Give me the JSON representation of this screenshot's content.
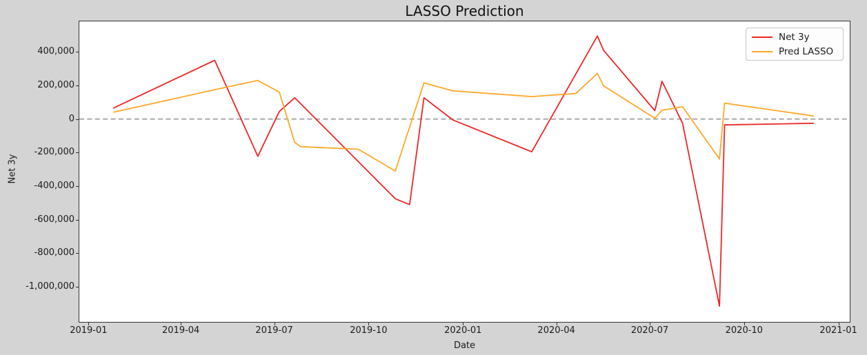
{
  "chart_data": {
    "type": "line",
    "title": "LASSO Prediction",
    "xlabel": "Date",
    "ylabel": "Net 3y",
    "background_color": "#d4d4d4",
    "plot_background_color": "#ffffff",
    "grid": false,
    "zero_line": {
      "value": 0,
      "style": "dashed",
      "color": "#999999"
    },
    "x_domain": [
      "2018-12-23",
      "2021-01-12"
    ],
    "y_domain": [
      -1209000,
      582000
    ],
    "x_ticks": [
      {
        "label": "2019-01",
        "date": "2019-01-01"
      },
      {
        "label": "2019-04",
        "date": "2019-04-01"
      },
      {
        "label": "2019-07",
        "date": "2019-07-01"
      },
      {
        "label": "2019-10",
        "date": "2019-10-01"
      },
      {
        "label": "2020-01",
        "date": "2020-01-01"
      },
      {
        "label": "2020-04",
        "date": "2020-04-01"
      },
      {
        "label": "2020-07",
        "date": "2020-07-01"
      },
      {
        "label": "2020-10",
        "date": "2020-10-01"
      },
      {
        "label": "2021-01",
        "date": "2021-01-01"
      }
    ],
    "y_ticks": [
      {
        "label": "400,000",
        "value": 400000
      },
      {
        "label": "200,000",
        "value": 200000
      },
      {
        "label": "0",
        "value": 0
      },
      {
        "label": "-200,000",
        "value": -200000
      },
      {
        "label": "-400,000",
        "value": -400000
      },
      {
        "label": "-600,000",
        "value": -600000
      },
      {
        "label": "-800,000",
        "value": -800000
      },
      {
        "label": "-1,000,000",
        "value": -1000000
      }
    ],
    "legend": {
      "position": "upper right",
      "items": [
        {
          "label": "Net 3y",
          "color": "#ee2526"
        },
        {
          "label": "Pred LASSO",
          "color": "#ffa726"
        }
      ]
    },
    "series": [
      {
        "name": "Net 3y",
        "color": "#ee2526",
        "line_width": 1.8,
        "points": [
          {
            "date": "2019-01-25",
            "value": 65000
          },
          {
            "date": "2019-05-04",
            "value": 350000
          },
          {
            "date": "2019-06-15",
            "value": -222000
          },
          {
            "date": "2019-07-06",
            "value": 45000
          },
          {
            "date": "2019-07-21",
            "value": 127000
          },
          {
            "date": "2019-10-27",
            "value": -475000
          },
          {
            "date": "2019-11-10",
            "value": -510000
          },
          {
            "date": "2019-11-24",
            "value": 127000
          },
          {
            "date": "2019-12-22",
            "value": -5000
          },
          {
            "date": "2020-03-08",
            "value": -195000
          },
          {
            "date": "2020-05-11",
            "value": 495000
          },
          {
            "date": "2020-05-17",
            "value": 410000
          },
          {
            "date": "2020-07-06",
            "value": 50000
          },
          {
            "date": "2020-07-13",
            "value": 225000
          },
          {
            "date": "2020-08-02",
            "value": -25000
          },
          {
            "date": "2020-09-07",
            "value": -1115000
          },
          {
            "date": "2020-09-12",
            "value": -35000
          },
          {
            "date": "2020-12-08",
            "value": -25000
          }
        ]
      },
      {
        "name": "Pred LASSO",
        "color": "#ffa726",
        "line_width": 1.8,
        "points": [
          {
            "date": "2019-01-25",
            "value": 40000
          },
          {
            "date": "2019-05-04",
            "value": 175000
          },
          {
            "date": "2019-06-15",
            "value": 230000
          },
          {
            "date": "2019-07-06",
            "value": 160000
          },
          {
            "date": "2019-07-21",
            "value": -140000
          },
          {
            "date": "2019-07-27",
            "value": -165000
          },
          {
            "date": "2019-09-21",
            "value": -180000
          },
          {
            "date": "2019-10-27",
            "value": -310000
          },
          {
            "date": "2019-11-24",
            "value": 215000
          },
          {
            "date": "2019-12-22",
            "value": 168000
          },
          {
            "date": "2020-03-08",
            "value": 134000
          },
          {
            "date": "2020-04-20",
            "value": 152000
          },
          {
            "date": "2020-05-11",
            "value": 272000
          },
          {
            "date": "2020-05-17",
            "value": 198000
          },
          {
            "date": "2020-07-06",
            "value": 5000
          },
          {
            "date": "2020-07-13",
            "value": 52000
          },
          {
            "date": "2020-08-02",
            "value": 73000
          },
          {
            "date": "2020-09-07",
            "value": -238000
          },
          {
            "date": "2020-09-12",
            "value": 95000
          },
          {
            "date": "2020-12-08",
            "value": 18000
          }
        ]
      }
    ]
  }
}
